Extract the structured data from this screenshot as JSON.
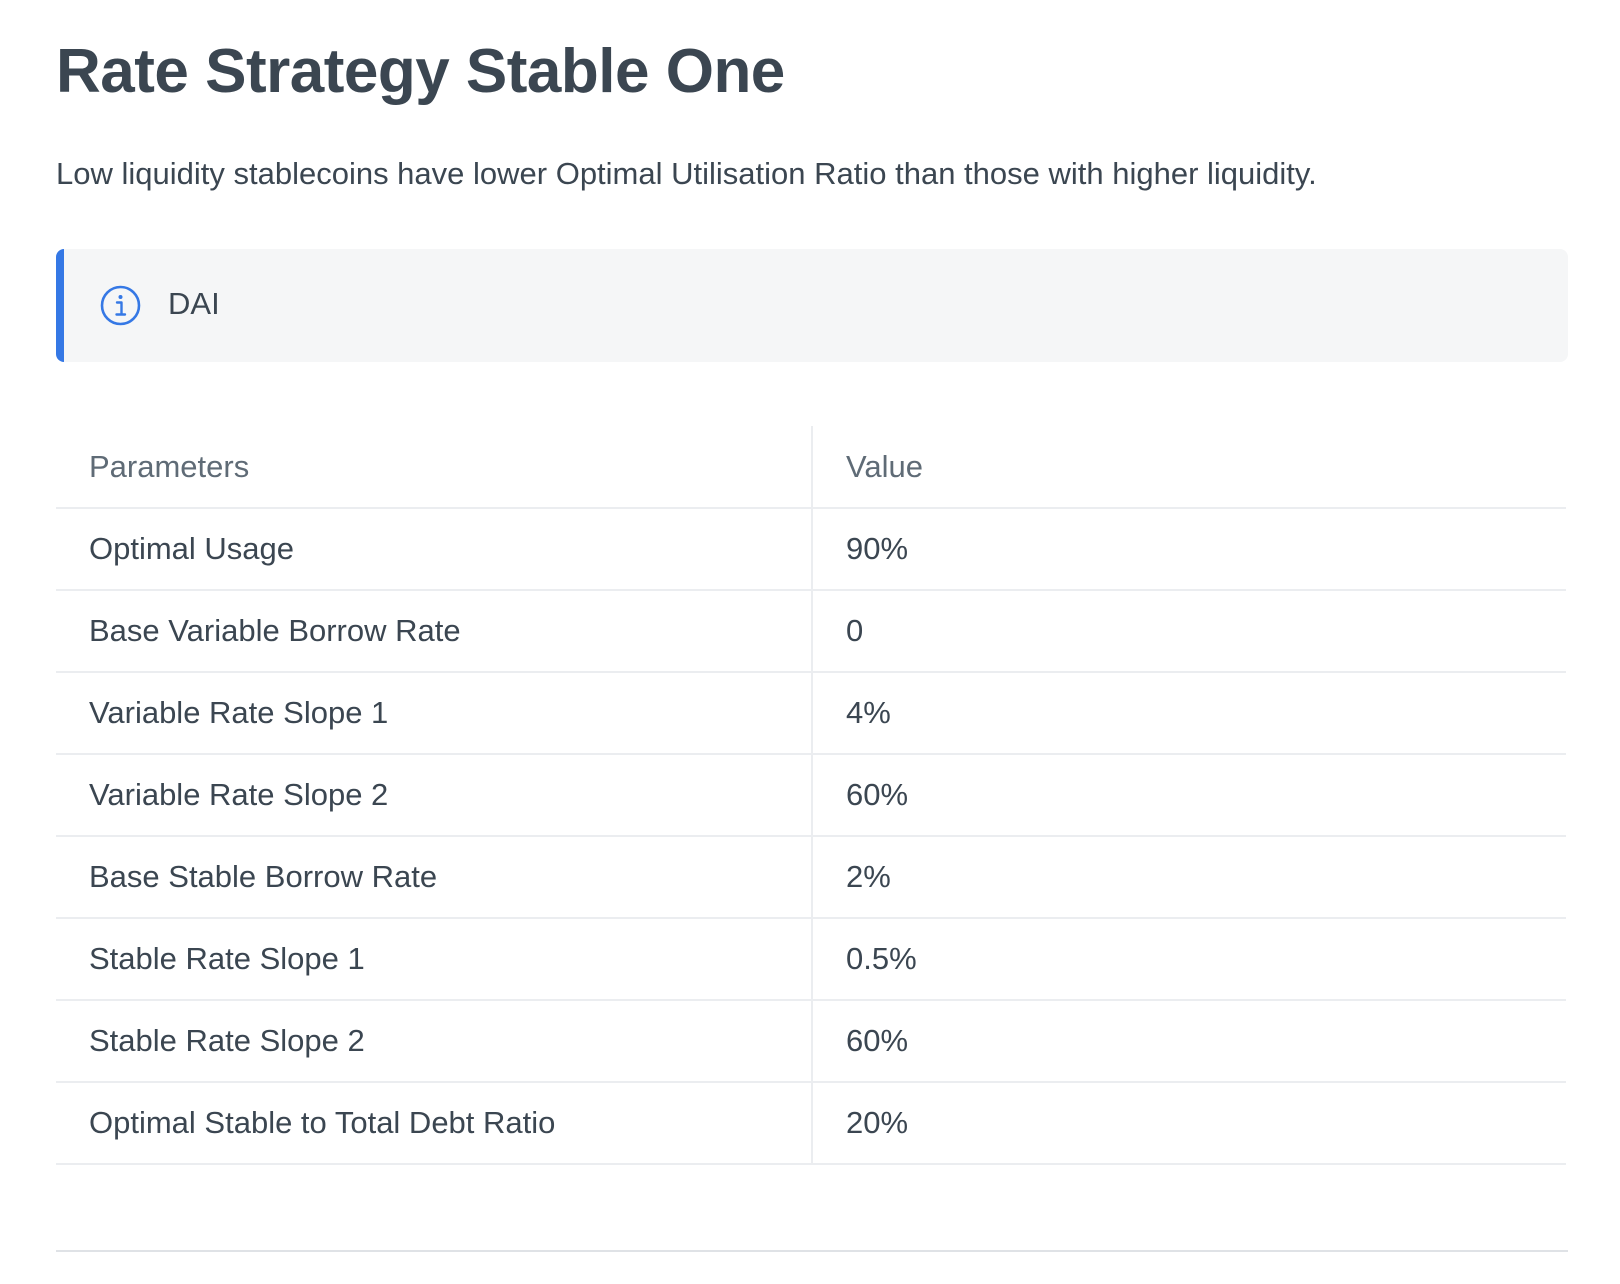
{
  "page": {
    "title": "Rate Strategy Stable One",
    "description": "Low liquidity stablecoins have lower Optimal Utilisation Ratio than those with higher liquidity."
  },
  "callout": {
    "icon": "info-icon",
    "text": "DAI",
    "accent_color": "#3578e5"
  },
  "table": {
    "headers": [
      "Parameters",
      "Value"
    ],
    "rows": [
      [
        "Optimal Usage",
        "90%"
      ],
      [
        "Base Variable Borrow Rate",
        "0"
      ],
      [
        "Variable Rate Slope 1",
        "4%"
      ],
      [
        "Variable Rate Slope 2",
        "60%"
      ],
      [
        "Base Stable Borrow Rate",
        "2%"
      ],
      [
        "Stable Rate Slope 1",
        "0.5%"
      ],
      [
        "Stable Rate Slope 2",
        "60%"
      ],
      [
        "Optimal Stable to Total Debt Ratio",
        "20%"
      ]
    ]
  }
}
